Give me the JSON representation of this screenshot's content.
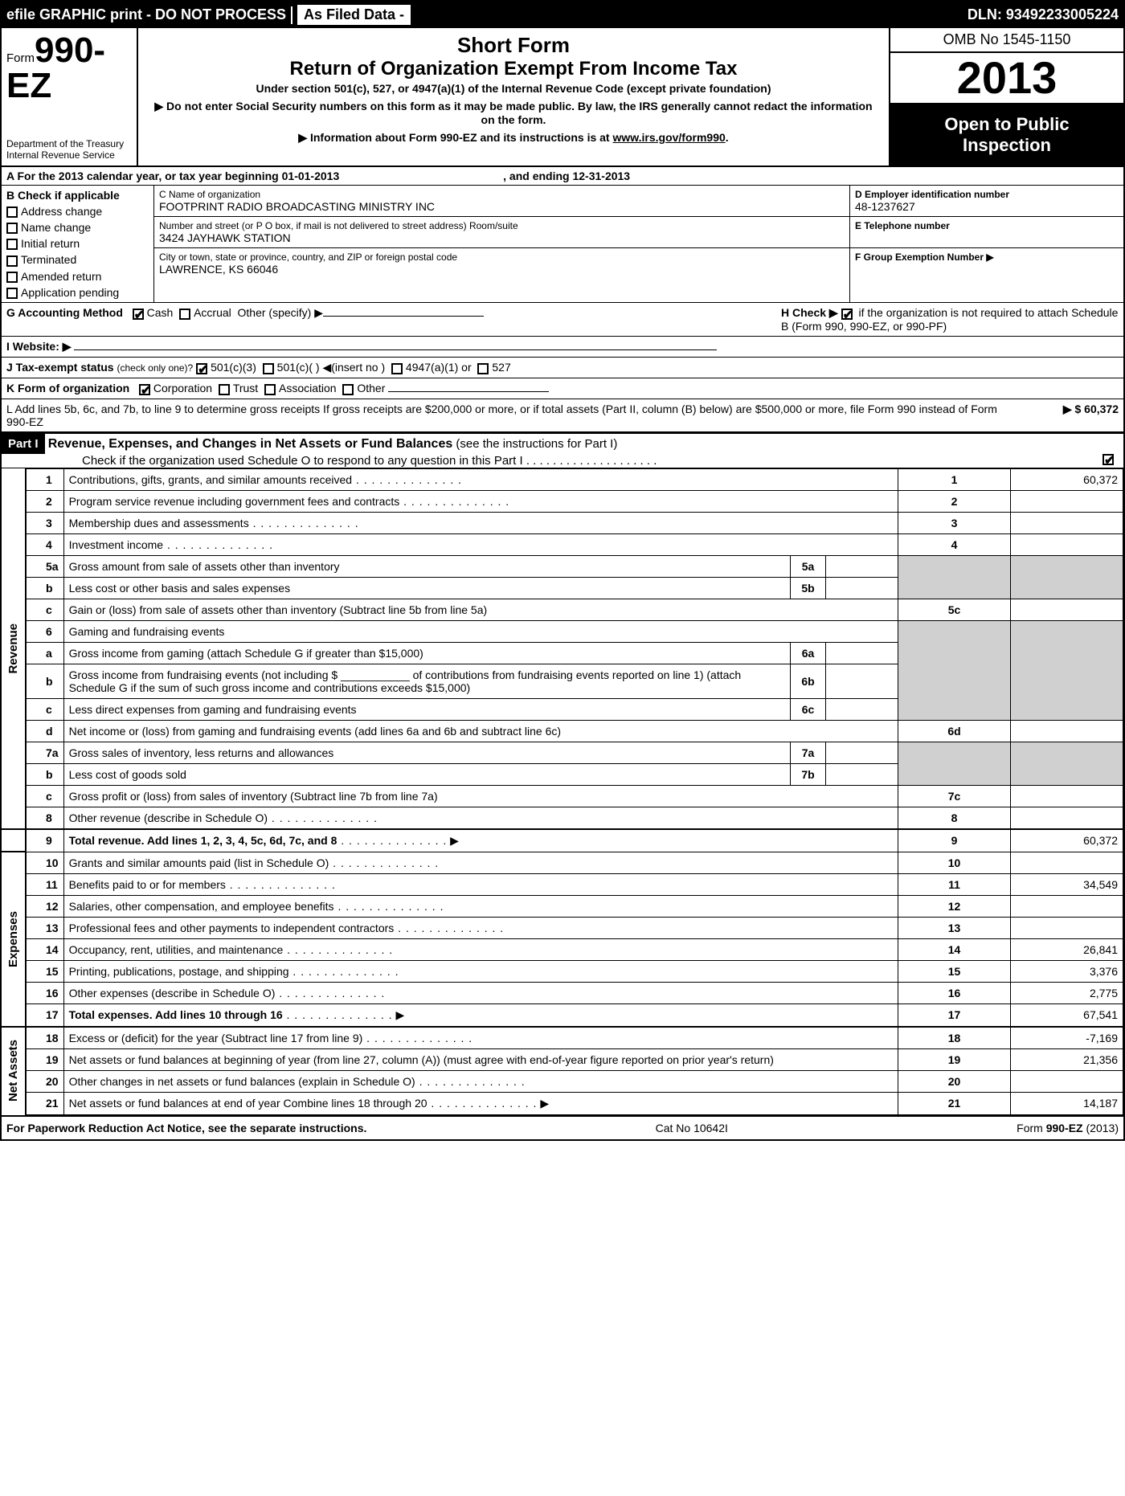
{
  "topbar": {
    "left": "efile GRAPHIC print - DO NOT PROCESS",
    "asfiled": "As Filed Data -",
    "dln_label": "DLN:",
    "dln": "93492233005224"
  },
  "header": {
    "form_prefix": "Form",
    "form_no": "990-EZ",
    "dept1": "Department of the Treasury",
    "dept2": "Internal Revenue Service",
    "title1": "Short Form",
    "title2": "Return of Organization Exempt From Income Tax",
    "title3": "Under section 501(c), 527, or 4947(a)(1) of the Internal Revenue Code (except private foundation)",
    "note1": "▶ Do not enter Social Security numbers on this form as it may be made public. By law, the IRS generally cannot redact the information on the form.",
    "note2_pre": "▶ Information about Form 990-EZ and its instructions is at ",
    "note2_link": "www.irs.gov/form990",
    "omb": "OMB No 1545-1150",
    "year": "2013",
    "open1": "Open to Public",
    "open2": "Inspection"
  },
  "sectionA": {
    "A_text_pre": "A  For the 2013 calendar year, or tax year beginning ",
    "A_begin": "01-01-2013",
    "A_mid": ", and ending ",
    "A_end": "12-31-2013",
    "B_label": "B  Check if applicable",
    "B_items": [
      "Address change",
      "Name change",
      "Initial return",
      "Terminated",
      "Amended return",
      "Application pending"
    ],
    "C_label": "C Name of organization",
    "C_name": "FOOTPRINT RADIO BROADCASTING MINISTRY INC",
    "C_addr_label": "Number and street (or P O box, if mail is not delivered to street address) Room/suite",
    "C_addr": "3424 JAYHAWK STATION",
    "C_city_label": "City or town, state or province, country, and ZIP or foreign postal code",
    "C_city": "LAWRENCE, KS  66046",
    "D_label": "D Employer identification number",
    "D_ein": "48-1237627",
    "E_label": "E Telephone number",
    "F_label": "F Group Exemption Number  ▶"
  },
  "checks": {
    "G_label": "G Accounting Method",
    "G_cash": "Cash",
    "G_accrual": "Accrual",
    "G_other": "Other (specify) ▶",
    "H_text": "H  Check ▶",
    "H_after": "if the organization is not required to attach Schedule B (Form 990, 990-EZ, or 990-PF)",
    "I_label": "I Website: ▶",
    "J_label": "J Tax-exempt status",
    "J_sub": "(check only one)?",
    "J_501c3": "501(c)(3)",
    "J_501c": "501(c)(  ) ◀(insert no )",
    "J_4947": "4947(a)(1) or",
    "J_527": "527",
    "K_label": "K Form of organization",
    "K_corp": "Corporation",
    "K_trust": "Trust",
    "K_assoc": "Association",
    "K_other": "Other",
    "L_text": "L Add lines 5b, 6c, and 7b, to line 9 to determine gross receipts  If gross receipts are $200,000 or more, or if total assets (Part II, column (B) below) are $500,000 or more, file Form 990 instead of Form 990-EZ",
    "L_amount": "▶ $ 60,372"
  },
  "partI": {
    "label": "Part I",
    "title": "Revenue, Expenses, and Changes in Net Assets or Fund Balances",
    "subtitle": "(see the instructions for Part I)",
    "checknote": "Check if the organization used Schedule O to respond to any question in this Part I  .  .  .  .  .  .  .  .  .  .  .  .  .  .  .  .  .  .  .  ."
  },
  "sides": {
    "revenue": "Revenue",
    "expenses": "Expenses",
    "netassets": "Net Assets"
  },
  "lines": {
    "l1": {
      "n": "1",
      "d": "Contributions, gifts, grants, and similar amounts received",
      "box": "1",
      "amt": "60,372"
    },
    "l2": {
      "n": "2",
      "d": "Program service revenue including government fees and contracts",
      "box": "2",
      "amt": ""
    },
    "l3": {
      "n": "3",
      "d": "Membership dues and assessments",
      "box": "3",
      "amt": ""
    },
    "l4": {
      "n": "4",
      "d": "Investment income",
      "box": "4",
      "amt": ""
    },
    "l5a": {
      "n": "5a",
      "d": "Gross amount from sale of assets other than inventory",
      "mid": "5a"
    },
    "l5b": {
      "n": "b",
      "d": "Less cost or other basis and sales expenses",
      "mid": "5b"
    },
    "l5c": {
      "n": "c",
      "d": "Gain or (loss) from sale of assets other than inventory (Subtract line 5b from line 5a)",
      "box": "5c",
      "amt": ""
    },
    "l6": {
      "n": "6",
      "d": "Gaming and fundraising events"
    },
    "l6a": {
      "n": "a",
      "d": "Gross income from gaming (attach Schedule G if greater than $15,000)",
      "mid": "6a"
    },
    "l6b": {
      "n": "b",
      "d": "Gross income from fundraising events (not including $ ___________ of contributions from fundraising events reported on line 1) (attach Schedule G if the sum of such gross income and contributions exceeds $15,000)",
      "mid": "6b"
    },
    "l6c": {
      "n": "c",
      "d": "Less direct expenses from gaming and fundraising events",
      "mid": "6c"
    },
    "l6d": {
      "n": "d",
      "d": "Net income or (loss) from gaming and fundraising events (add lines 6a and 6b and subtract line 6c)",
      "box": "6d",
      "amt": ""
    },
    "l7a": {
      "n": "7a",
      "d": "Gross sales of inventory, less returns and allowances",
      "mid": "7a"
    },
    "l7b": {
      "n": "b",
      "d": "Less cost of goods sold",
      "mid": "7b"
    },
    "l7c": {
      "n": "c",
      "d": "Gross profit or (loss) from sales of inventory (Subtract line 7b from line 7a)",
      "box": "7c",
      "amt": ""
    },
    "l8": {
      "n": "8",
      "d": "Other revenue (describe in Schedule O)",
      "box": "8",
      "amt": ""
    },
    "l9": {
      "n": "9",
      "d": "Total revenue. Add lines 1, 2, 3, 4, 5c, 6d, 7c, and 8",
      "box": "9",
      "amt": "60,372",
      "bold": true,
      "arrow": true
    },
    "l10": {
      "n": "10",
      "d": "Grants and similar amounts paid (list in Schedule O)",
      "box": "10",
      "amt": ""
    },
    "l11": {
      "n": "11",
      "d": "Benefits paid to or for members",
      "box": "11",
      "amt": "34,549"
    },
    "l12": {
      "n": "12",
      "d": "Salaries, other compensation, and employee benefits",
      "box": "12",
      "amt": ""
    },
    "l13": {
      "n": "13",
      "d": "Professional fees and other payments to independent contractors",
      "box": "13",
      "amt": ""
    },
    "l14": {
      "n": "14",
      "d": "Occupancy, rent, utilities, and maintenance",
      "box": "14",
      "amt": "26,841"
    },
    "l15": {
      "n": "15",
      "d": "Printing, publications, postage, and shipping",
      "box": "15",
      "amt": "3,376"
    },
    "l16": {
      "n": "16",
      "d": "Other expenses (describe in Schedule O)",
      "box": "16",
      "amt": "2,775"
    },
    "l17": {
      "n": "17",
      "d": "Total expenses. Add lines 10 through 16",
      "box": "17",
      "amt": "67,541",
      "bold": true,
      "arrow": true
    },
    "l18": {
      "n": "18",
      "d": "Excess or (deficit) for the year (Subtract line 17 from line 9)",
      "box": "18",
      "amt": "-7,169"
    },
    "l19": {
      "n": "19",
      "d": "Net assets or fund balances at beginning of year (from line 27, column (A)) (must agree with end-of-year figure reported on prior year's return)",
      "box": "19",
      "amt": "21,356"
    },
    "l20": {
      "n": "20",
      "d": "Other changes in net assets or fund balances (explain in Schedule O)",
      "box": "20",
      "amt": ""
    },
    "l21": {
      "n": "21",
      "d": "Net assets or fund balances at end of year Combine lines 18 through 20",
      "box": "21",
      "amt": "14,187",
      "arrow": true
    }
  },
  "footer": {
    "left": "For Paperwork Reduction Act Notice, see the separate instructions.",
    "mid": "Cat No 10642I",
    "right_pre": "Form ",
    "right_form": "990-EZ",
    "right_year": " (2013)"
  }
}
